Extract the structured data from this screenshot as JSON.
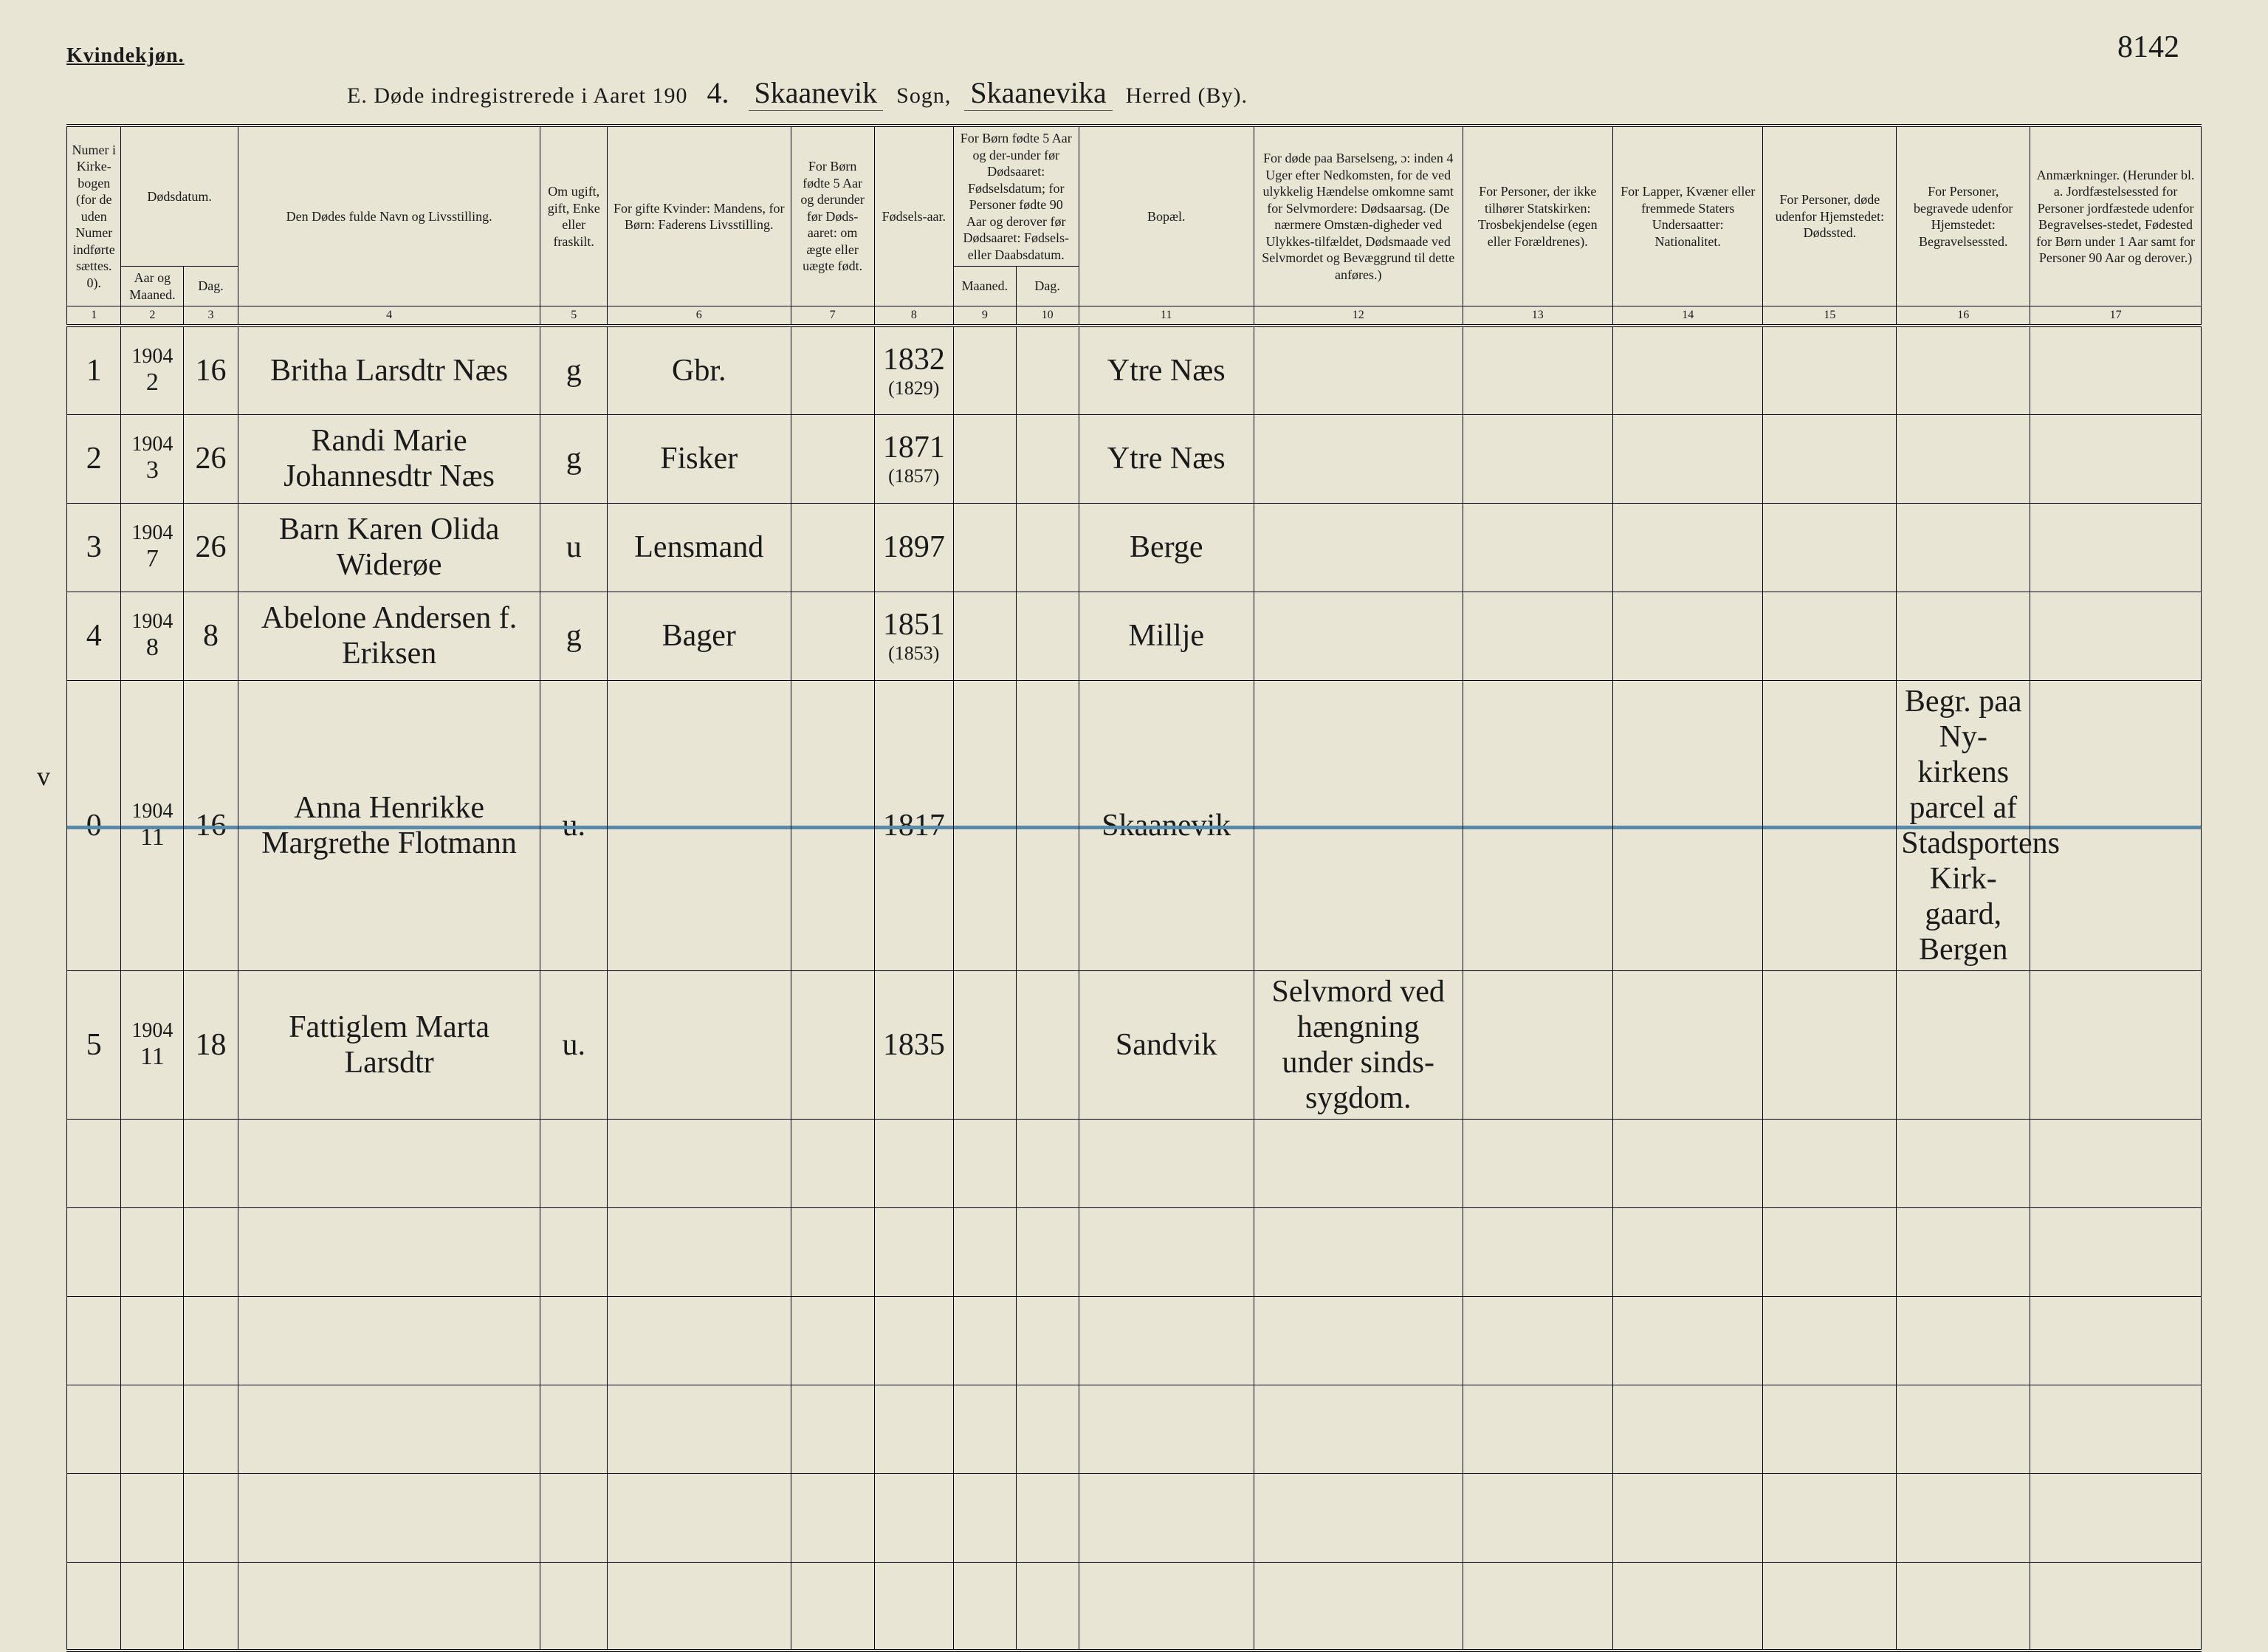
{
  "page_number_handwritten": "8142",
  "gender_label": "Kvindekjøn.",
  "title_prefix": "E.   Døde indregistrerede i Aaret 190",
  "year_digit": "4.",
  "sogn_label": "Sogn,",
  "sogn_value": "Skaanevik",
  "herred_label": "Herred (By).",
  "herred_value": "Skaanevika",
  "columns": {
    "1": "Numer i Kirke-bogen (for de uden Numer indførte sættes. 0).",
    "2_top": "Dødsdatum.",
    "2": "Aar og Maaned.",
    "3": "Dag.",
    "4": "Den Dødes fulde Navn og Livsstilling.",
    "5": "Om ugift, gift, Enke eller fraskilt.",
    "6": "For gifte Kvinder: Mandens, for Børn: Faderens Livsstilling.",
    "7": "For Børn fødte 5 Aar og derunder før Døds-aaret: om ægte eller uægte født.",
    "8": "Fødsels-aar.",
    "9_top": "For Børn fødte 5 Aar og der-under før Dødsaaret: Fødselsdatum; for Personer fødte 90 Aar og derover før Dødsaaret: Fødsels- eller Daabsdatum.",
    "9": "Maaned.",
    "10": "Dag.",
    "11": "Bopæl.",
    "12": "For døde paa Barselseng, ɔ: inden 4 Uger efter Nedkomsten, for de ved ulykkelig Hændelse omkomne samt for Selvmordere: Dødsaarsag. (De nærmere Omstæn-digheder ved Ulykkes-tilfældet, Dødsmaade ved Selvmordet og Bevæggrund til dette anføres.)",
    "13": "For Personer, der ikke tilhører Statskirken: Trosbekjendelse (egen eller Forældrenes).",
    "14": "For Lapper, Kvæner eller fremmede Staters Undersaatter: Nationalitet.",
    "15": "For Personer, døde udenfor Hjemstedet: Dødssted.",
    "16": "For Personer, begravede udenfor Hjemstedet: Begravelsessted.",
    "17": "Anmærkninger. (Herunder bl. a. Jordfæstelsessted for Personer jordfæstede udenfor Begravelses-stedet, Fødested for Børn under 1 Aar samt for Personer 90 Aar og derover.)"
  },
  "colnums": [
    "1",
    "2",
    "3",
    "4",
    "5",
    "6",
    "7",
    "8",
    "9",
    "10",
    "11",
    "12",
    "13",
    "14",
    "15",
    "16",
    "17"
  ],
  "rows": [
    {
      "n": "1",
      "yr": "1904",
      "mo": "2",
      "dag": "16",
      "name": "Britha Larsdtr Næs",
      "civ": "g",
      "occ": "Gbr.",
      "born": "1832",
      "born_sub": "(1829)",
      "bopel": "Ytre Næs",
      "c12": "",
      "c16": "",
      "margin": ""
    },
    {
      "n": "2",
      "yr": "1904",
      "mo": "3",
      "dag": "26",
      "name": "Randi Marie Johannesdtr Næs",
      "civ": "g",
      "occ": "Fisker",
      "born": "1871",
      "born_sub": "(1857)",
      "bopel": "Ytre Næs",
      "c12": "",
      "c16": "",
      "margin": ""
    },
    {
      "n": "3",
      "yr": "1904",
      "mo": "7",
      "dag": "26",
      "name": "Barn Karen Olida Widerøe",
      "civ": "u",
      "occ": "Lensmand",
      "born": "1897",
      "born_sub": "",
      "bopel": "Berge",
      "c12": "",
      "c16": "",
      "margin": ""
    },
    {
      "n": "4",
      "yr": "1904",
      "mo": "8",
      "dag": "8",
      "name": "Abelone Andersen f. Eriksen",
      "civ": "g",
      "occ": "Bager",
      "born": "1851",
      "born_sub": "(1853)",
      "bopel": "Millje",
      "c12": "",
      "c16": "",
      "margin": ""
    },
    {
      "n": "0",
      "yr": "1904",
      "mo": "11",
      "dag": "16",
      "name": "Anna Henrikke Margrethe Flotmann",
      "civ": "u.",
      "occ": "",
      "born": "1817",
      "born_sub": "",
      "bopel": "Skaanevik",
      "c12": "",
      "c16": "Begr. paa Ny-kirkens parcel af Stadsportens Kirk-gaard, Bergen",
      "margin": "",
      "struck": true
    },
    {
      "n": "5",
      "yr": "1904",
      "mo": "11",
      "dag": "18",
      "name": "Fattiglem Marta Larsdtr",
      "civ": "u.",
      "occ": "",
      "born": "1835",
      "born_sub": "",
      "bopel": "Sandvik",
      "c12": "Selvmord ved hængning under sinds-sygdom.",
      "c16": "",
      "margin": "v"
    }
  ],
  "blank_rows": 6,
  "colors": {
    "paper": "#e8e5d4",
    "ink": "#1a1a1a",
    "strike": "#5b8aa8"
  }
}
